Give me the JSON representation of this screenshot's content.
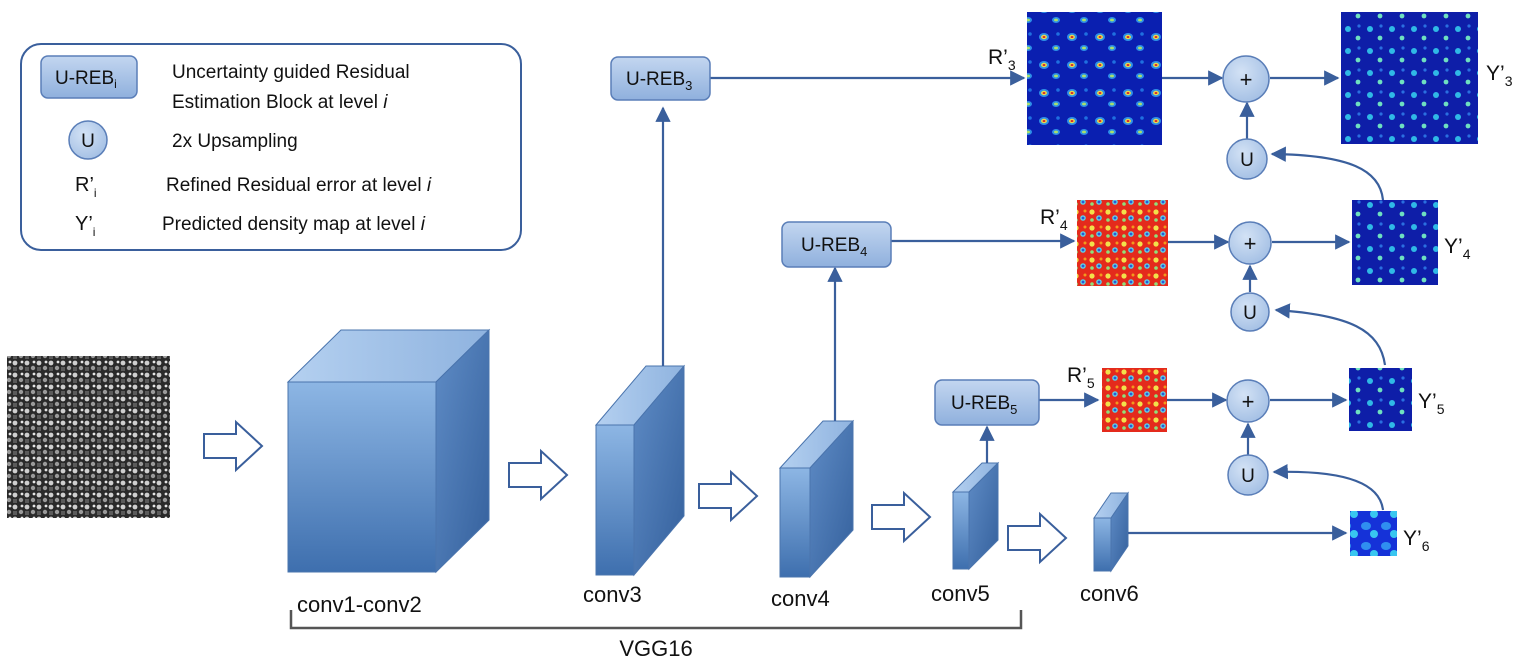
{
  "legend": {
    "ureb_box": "U-REB",
    "ureb_sub": "i",
    "ureb_desc_line1": "Uncertainty guided Residual",
    "ureb_desc_line2": "Estimation Block at level ",
    "ureb_desc_italic": "i",
    "u_circle": "U",
    "u_desc": "2x Upsampling",
    "r_sym": "R’",
    "r_sub": "i",
    "r_desc": "Refined Residual error at level ",
    "r_desc_italic": "i",
    "y_sym": "Y’",
    "y_sub": "i",
    "y_desc": "Predicted density map at level ",
    "y_desc_italic": "i"
  },
  "layers": {
    "conv12": "conv1-conv2",
    "conv3": "conv3",
    "conv4": "conv4",
    "conv5": "conv5",
    "conv6": "conv6",
    "vgg": "VGG16"
  },
  "blocks": {
    "ureb3": {
      "text": "U-REB",
      "sub": "3"
    },
    "ureb4": {
      "text": "U-REB",
      "sub": "4"
    },
    "ureb5": {
      "text": "U-REB",
      "sub": "5"
    }
  },
  "residuals": {
    "r3": {
      "sym": "R’",
      "sub": "3"
    },
    "r4": {
      "sym": "R’",
      "sub": "4"
    },
    "r5": {
      "sym": "R’",
      "sub": "5"
    }
  },
  "outputs": {
    "y3": {
      "sym": "Y’",
      "sub": "3"
    },
    "y4": {
      "sym": "Y’",
      "sub": "4"
    },
    "y5": {
      "sym": "Y’",
      "sub": "5"
    },
    "y6": {
      "sym": "Y’",
      "sub": "6"
    }
  },
  "ops": {
    "plus": "+",
    "upsample": "U"
  },
  "colors": {
    "line": "#3a5f9c",
    "node_fill": "#a9c3e8",
    "node_stroke": "#5a7eb8",
    "cube_front": "#6d9bd1",
    "heat_blue": "#0b1a9e",
    "heat_red": "#e8281f"
  }
}
